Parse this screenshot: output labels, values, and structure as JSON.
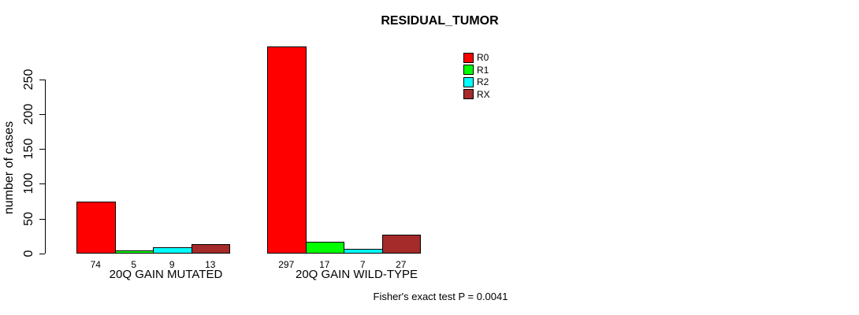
{
  "title": "RESIDUAL_TUMOR",
  "chart_data": {
    "type": "bar",
    "title": "RESIDUAL_TUMOR",
    "ylabel": "number of cases",
    "xlabel": "",
    "ylim": [
      0,
      250
    ],
    "yticks": [
      0,
      50,
      100,
      150,
      200,
      250
    ],
    "grid": false,
    "legend_position": "right-top",
    "categories": [
      "20Q GAIN MUTATED",
      "20Q GAIN WILD-TYPE"
    ],
    "series": [
      {
        "name": "R0",
        "color": "#ff0000",
        "values": [
          74,
          297
        ]
      },
      {
        "name": "R1",
        "color": "#00ff00",
        "values": [
          5,
          17
        ]
      },
      {
        "name": "R2",
        "color": "#00ffff",
        "values": [
          9,
          7
        ]
      },
      {
        "name": "RX",
        "color": "#a52a2a",
        "values": [
          13,
          27
        ]
      }
    ],
    "bar_value_labels": [
      [
        "74",
        "5",
        "9",
        "13"
      ],
      [
        "297",
        "17",
        "7",
        "27"
      ]
    ],
    "annotation": "Fisher's exact test P = 0.0041",
    "bar_border_color": "#000000",
    "axis_color": "#000000",
    "background_color": "#ffffff"
  }
}
